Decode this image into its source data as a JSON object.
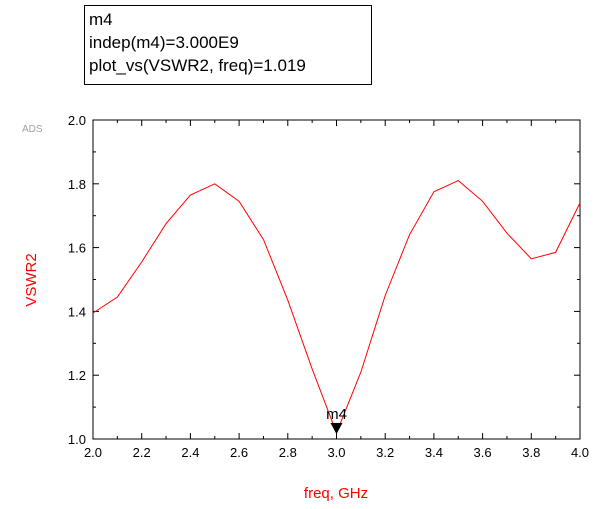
{
  "marker_box": {
    "line1": "m4",
    "line2": "indep(m4)=3.000E9",
    "line3": "plot_vs(VSWR2, freq)=1.019"
  },
  "ads_tag": "ADS",
  "colors": {
    "trace": "#ff0000",
    "axis_text": "#ff0000",
    "frame": "#000000"
  },
  "chart_data": {
    "type": "line",
    "xlabel": "freq, GHz",
    "ylabel": "VSWR2",
    "xlim": [
      2.0,
      4.0
    ],
    "ylim": [
      1.0,
      2.0
    ],
    "x_ticks": [
      "2.0",
      "2.2",
      "2.4",
      "2.6",
      "2.8",
      "3.0",
      "3.2",
      "3.4",
      "3.6",
      "3.8",
      "4.0"
    ],
    "y_ticks": [
      "1.0",
      "1.2",
      "1.4",
      "1.6",
      "1.8",
      "2.0"
    ],
    "grid": false,
    "series": [
      {
        "x": [
          2.0,
          2.1,
          2.2,
          2.3,
          2.4,
          2.5,
          2.6,
          2.7,
          2.8,
          2.9,
          3.0,
          3.1,
          3.2,
          3.3,
          3.4,
          3.5,
          3.6,
          3.7,
          3.8,
          3.9,
          4.0
        ],
        "y": [
          1.395,
          1.445,
          1.555,
          1.675,
          1.765,
          1.8,
          1.745,
          1.625,
          1.435,
          1.22,
          1.019,
          1.21,
          1.45,
          1.64,
          1.775,
          1.81,
          1.745,
          1.645,
          1.565,
          1.585,
          1.74
        ]
      }
    ],
    "marker": {
      "label": "m4",
      "x": 3.0,
      "y": 1.019
    }
  }
}
